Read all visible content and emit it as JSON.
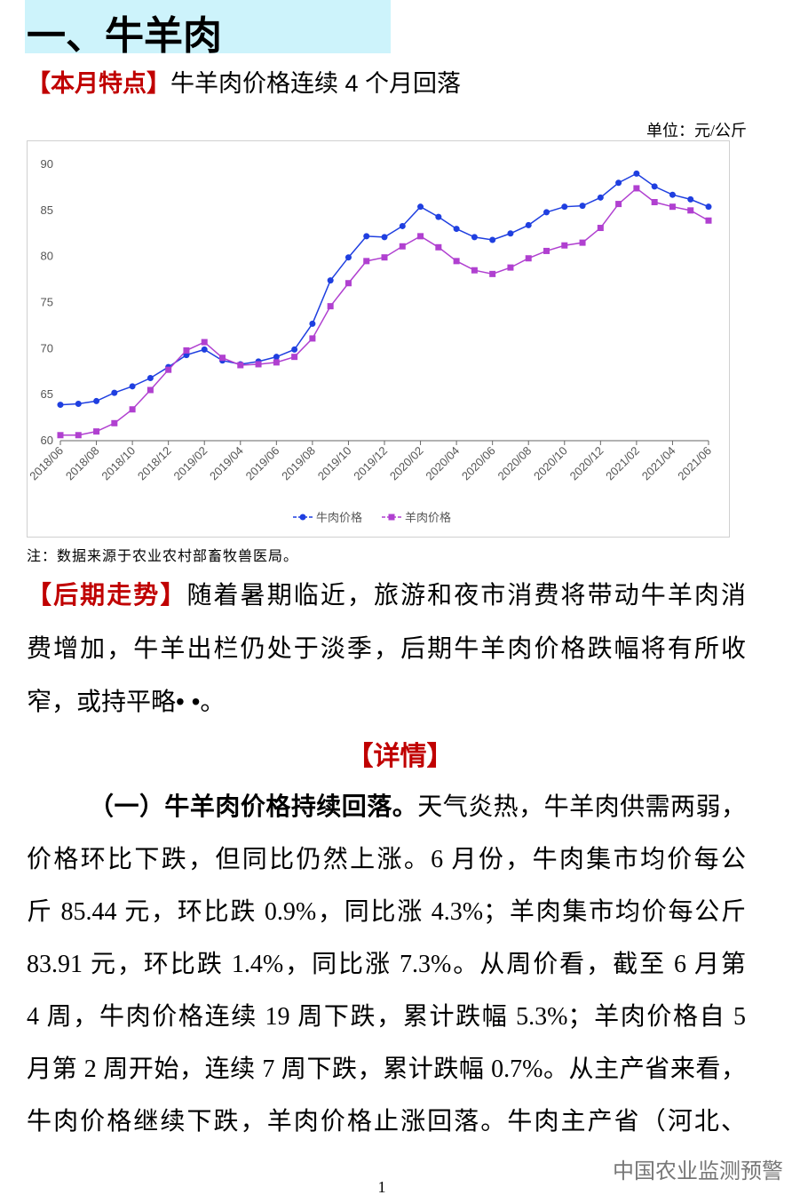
{
  "header": {
    "title": "一、牛羊肉"
  },
  "summary": {
    "tag": "【本月特点】",
    "text": "牛羊肉价格连续 4 个月回落"
  },
  "unit": "单位：元/公斤",
  "chart_data": {
    "type": "line",
    "categories": [
      "2018/06",
      null,
      "2018/08",
      null,
      "2018/10",
      null,
      "2018/12",
      null,
      "2019/02",
      null,
      "2019/04",
      null,
      "2019/06",
      null,
      "2019/08",
      null,
      "2019/10",
      null,
      "2019/12",
      null,
      "2020/02",
      null,
      "2020/04",
      null,
      "2020/06",
      null,
      "2020/08",
      null,
      "2020/10",
      null,
      "2020/12",
      null,
      "2021/02",
      null,
      "2021/04",
      null,
      "2021/06"
    ],
    "series": [
      {
        "name": "牛肉价格",
        "color": "#1f3fe0",
        "marker": "circle",
        "values": [
          63.9,
          64.0,
          64.3,
          65.2,
          65.9,
          66.8,
          68.0,
          69.3,
          69.9,
          68.7,
          68.3,
          68.6,
          69.1,
          69.9,
          72.7,
          77.4,
          79.9,
          82.2,
          82.1,
          83.3,
          85.4,
          84.3,
          83.0,
          82.1,
          81.8,
          82.5,
          83.4,
          84.8,
          85.4,
          85.5,
          86.4,
          88.0,
          89.0,
          87.6,
          86.7,
          86.2,
          85.4
        ]
      },
      {
        "name": "羊肉价格",
        "color": "#b040d0",
        "marker": "square",
        "values": [
          60.6,
          60.6,
          61.0,
          61.9,
          63.4,
          65.5,
          67.7,
          69.8,
          70.7,
          69.0,
          68.2,
          68.3,
          68.5,
          69.1,
          71.1,
          74.6,
          77.1,
          79.5,
          79.9,
          81.1,
          82.2,
          81.0,
          79.5,
          78.5,
          78.1,
          78.8,
          79.8,
          80.6,
          81.2,
          81.5,
          83.1,
          85.7,
          87.4,
          85.9,
          85.4,
          85.0,
          83.9
        ]
      }
    ],
    "ylim": [
      60,
      90
    ],
    "yticks": [
      60,
      65,
      70,
      75,
      80,
      85,
      90
    ],
    "grid": false,
    "legend": "bottom"
  },
  "note": "注：数据来源于农业农村部畜牧兽医局。",
  "outlook": {
    "tag": "【后期走势】",
    "lines": [
      "随着暑期临近，旅游和夜市消费将带动牛羊肉消",
      "费增加，牛羊出栏仍处于淡季，后期牛羊肉价格跌幅将有所收",
      "窄，或持平略• •。"
    ]
  },
  "details": {
    "heading": "【详情】",
    "lead": "（一）牛羊肉价格持续回落。",
    "lines": [
      "天气炎热，牛羊肉供需两弱，",
      "价格环比下跌，但同比仍然上涨。6 月份，牛肉集市均价每公",
      "斤 85.44 元，环比跌 0.9%，同比涨 4.3%；羊肉集市均价每公斤",
      "83.91 元，环比跌 1.4%，同比涨 7.3%。从周价看，截至 6 月第",
      "4 周，牛肉价格连续 19 周下跌，累计跌幅 5.3%；羊肉价格自 5",
      "月第 2 周开始，连续 7 周下跌，累计跌幅 0.7%。从主产省来看，",
      "牛肉价格继续下跌，羊肉价格止涨回落。牛肉主产省（河北、"
    ]
  },
  "watermark": "中国农业监测预警",
  "page_number": "1"
}
